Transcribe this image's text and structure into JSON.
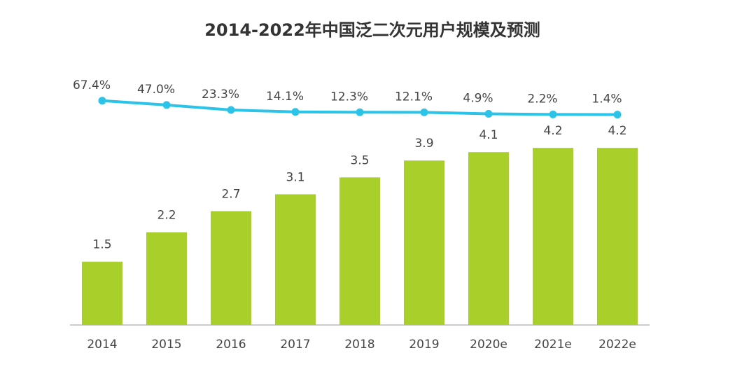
{
  "chart_data": {
    "type": "bar",
    "title": "2014-2022年中国泛二次元用户规模及预测",
    "categories": [
      "2014",
      "2015",
      "2016",
      "2017",
      "2018",
      "2019",
      "2020e",
      "2021e",
      "2022e"
    ],
    "series": [
      {
        "type": "bar",
        "color": "#a9cf2b",
        "values": [
          1.5,
          2.2,
          2.7,
          3.1,
          3.5,
          3.9,
          4.1,
          4.2,
          4.2
        ]
      },
      {
        "type": "line",
        "color": "#2bc4e8",
        "values": [
          67.4,
          47.0,
          23.3,
          14.1,
          12.3,
          12.1,
          4.9,
          2.2,
          1.4
        ],
        "value_labels": [
          "67.4%",
          "47.0%",
          "23.3%",
          "14.1%",
          "12.3%",
          "12.1%",
          "4.9%",
          "2.2%",
          "1.4%"
        ]
      }
    ]
  }
}
